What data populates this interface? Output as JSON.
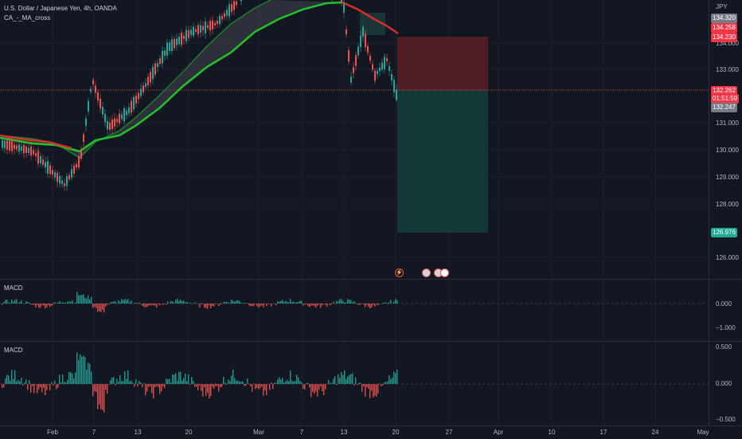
{
  "header": {
    "symbol_title": "U.S. Dollar / Japanese Yen, 4h, OANDA",
    "indicator_label": "CA_-_MA_cross",
    "currency": "JPY"
  },
  "price_axis": {
    "ticks": [
      "134.000",
      "133.000",
      "131.000",
      "130.000",
      "129.000",
      "128.000",
      "126.000"
    ],
    "tag_top_grey": "134.320",
    "tag_red_1": "134.258",
    "tag_red_2": "134.230",
    "current_price": "132.262",
    "countdown": "01:51:59",
    "bid_price": "132.247",
    "target_price": "126.976"
  },
  "macd_panes": [
    {
      "label": "MACD",
      "ticks": [
        "0.000",
        "−1.000"
      ]
    },
    {
      "label": "MACD",
      "ticks": [
        "0.500",
        "0.000",
        "−0.500"
      ]
    }
  ],
  "time_axis": {
    "labels": [
      "Feb",
      "7",
      "13",
      "20",
      "Mar",
      "7",
      "13",
      "20",
      "27",
      "Apr",
      "10",
      "17",
      "24",
      "May"
    ]
  },
  "colors": {
    "background": "#131722",
    "bull": "#26a69a",
    "bear": "#ef5350",
    "fast_ma": "#22c22a",
    "slow_ma": "#d32f2f",
    "stop_zone": "#5b1f26",
    "target_zone": "#153c38",
    "price_line": "#ef5350"
  },
  "events": {
    "icons": [
      "lightning-icon",
      "flag-us-icon",
      "flag-us-icon",
      "flag-jp-icon"
    ]
  }
}
